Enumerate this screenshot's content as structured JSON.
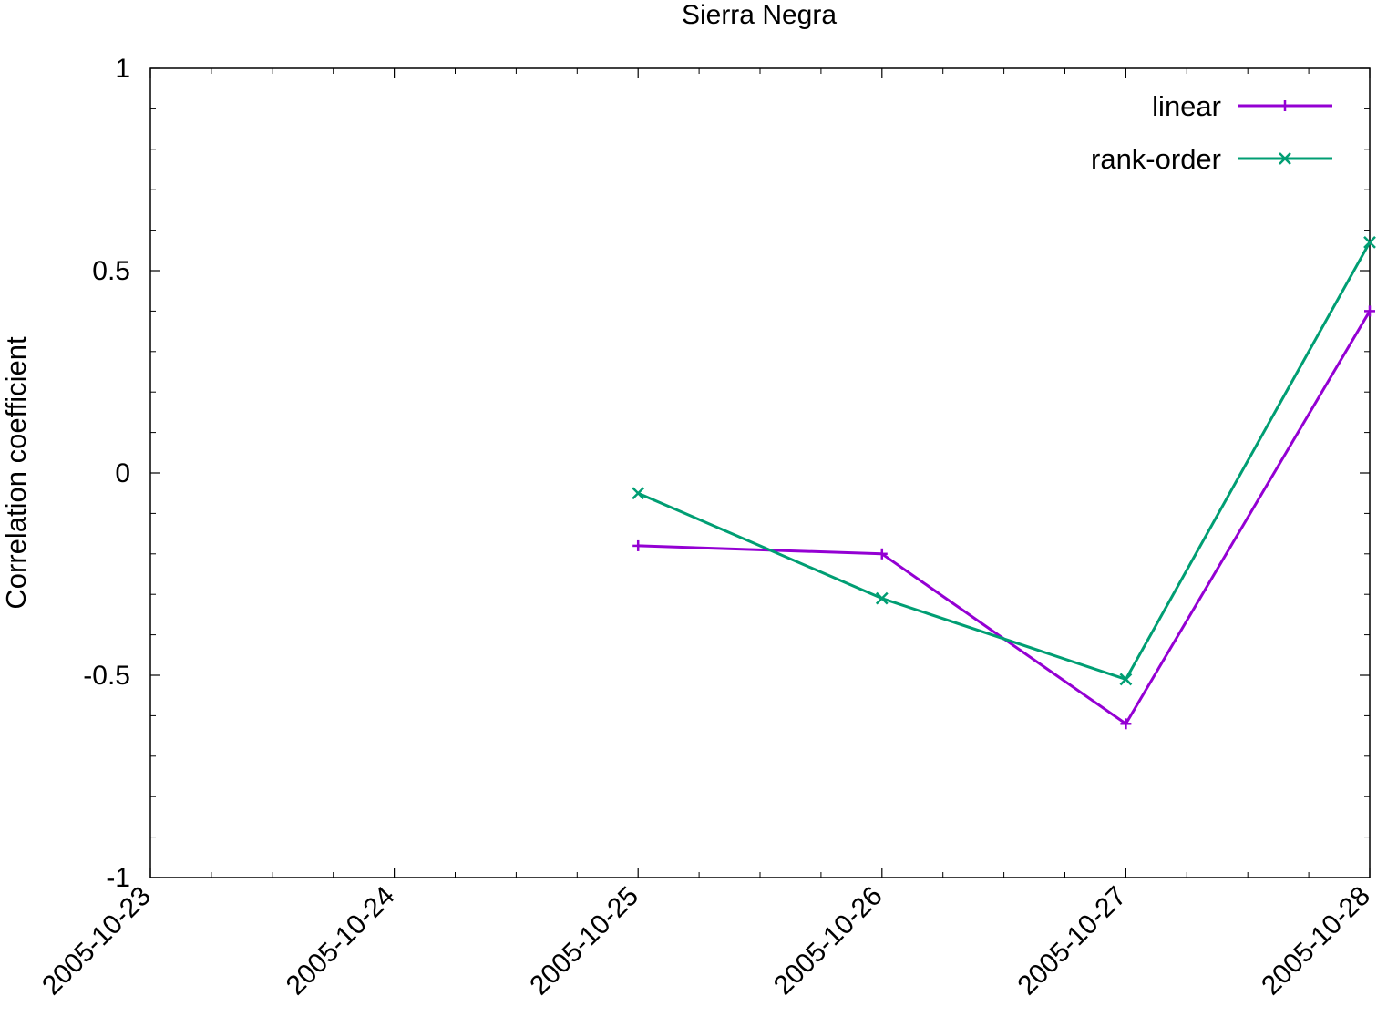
{
  "chart_data": {
    "type": "line",
    "title": "Sierra Negra",
    "xlabel": "",
    "ylabel": "Correlation coefficient",
    "x": [
      "2005-10-25",
      "2005-10-26",
      "2005-10-27",
      "2005-10-28"
    ],
    "xlim": [
      "2005-10-23",
      "2005-10-28"
    ],
    "xticks": [
      "2005-10-23",
      "2005-10-24",
      "2005-10-25",
      "2005-10-26",
      "2005-10-27",
      "2005-10-28"
    ],
    "ylim": [
      -1,
      1
    ],
    "yticks": [
      "1",
      "0.5",
      "0",
      "-0.5",
      "-1"
    ],
    "grid": false,
    "legend_position": "top-right",
    "series": [
      {
        "name": "linear",
        "color": "#9400d3",
        "marker": "plus",
        "values": [
          -0.18,
          -0.2,
          -0.62,
          0.4
        ]
      },
      {
        "name": "rank-order",
        "color": "#009e73",
        "marker": "cross",
        "values": [
          -0.05,
          -0.31,
          -0.51,
          0.57
        ]
      }
    ]
  }
}
